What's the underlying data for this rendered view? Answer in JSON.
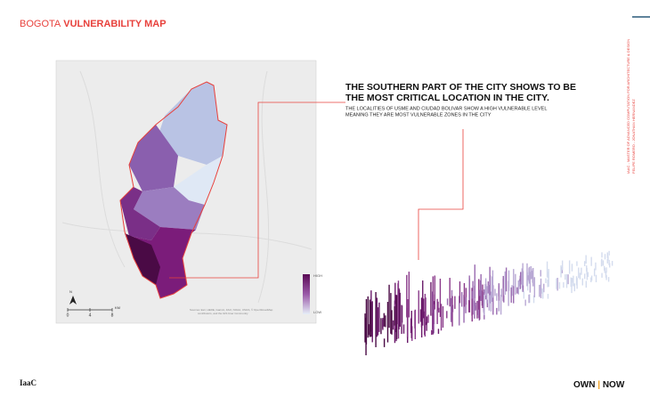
{
  "header": {
    "title_light": "BOGOTA",
    "title_bold": "VULNERABILITY MAP"
  },
  "headline": [
    "THE SOUTHERN PART OF THE CITY SHOWS TO BE",
    "THE MOST CRITICAL LOCATION IN THE CITY."
  ],
  "description": [
    "THE LOCALITIES OF USME AND CIUDAD BOLIVAR SHOW A HIGH VULNERABLE LEVEL",
    "MEANING THEY ARE MOST VULNERABLE ZONES IN THE CITY"
  ],
  "side_text": [
    "IAAC - MASTER OF ADVANCED COMPUTATION FOR ARCHITECTURE & DESIGN",
    "FELIPE ROMERO - JONATHAN HERNANDEZ"
  ],
  "map": {
    "legend_high": "HIGH",
    "legend_low": "LOW",
    "north": "N",
    "scale": [
      "0",
      "4",
      "8",
      "KM"
    ],
    "attribution": [
      "Sources: Esri, HERE, Garmin, FAO, NOAA, USGS, © OpenStreetMap",
      "contributors, and the GIS User Community"
    ]
  },
  "footer": {
    "logo": "IaaC",
    "brand_left": "OWN",
    "brand_right": "NOW"
  }
}
